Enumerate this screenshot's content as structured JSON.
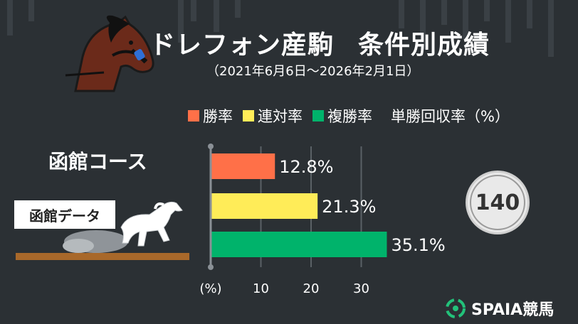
{
  "header": {
    "title_main": "ドレフォン産駒",
    "title_sub": "条件別成績",
    "period": "（2021年6月6日～2026年2月1日）"
  },
  "legend": {
    "items": [
      {
        "label": "勝率",
        "color": "#ff7048"
      },
      {
        "label": "連対率",
        "color": "#ffec58"
      },
      {
        "label": "複勝率",
        "color": "#00b36b"
      }
    ],
    "roi_label": "単勝回収率（%）"
  },
  "course_label": "函館コース",
  "data_tag": "函館データ",
  "roi_value": "140",
  "brand": "SPAIA競馬",
  "chart_data": {
    "type": "bar",
    "orientation": "horizontal",
    "categories": [
      "勝率",
      "連対率",
      "複勝率"
    ],
    "values": [
      12.8,
      21.3,
      35.1
    ],
    "value_labels": [
      "12.8%",
      "21.3%",
      "35.1%"
    ],
    "colors": [
      "#ff7048",
      "#ffec58",
      "#00b36b"
    ],
    "xunit": "(%)",
    "xticks": [
      10,
      20,
      30
    ],
    "xlim": [
      0,
      40
    ],
    "grid": true
  }
}
